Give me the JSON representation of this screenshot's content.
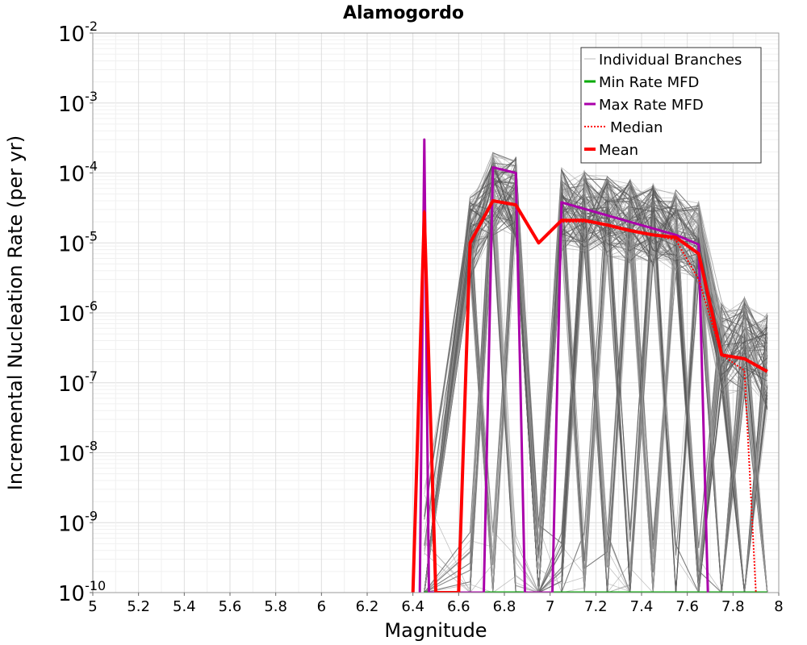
{
  "chart_data": {
    "type": "line",
    "title": "Alamogordo",
    "xlabel": "Magnitude",
    "ylabel": "Incremental Nucleation Rate (per yr)",
    "x_scale": "linear",
    "y_scale": "log",
    "xlim": [
      5,
      8
    ],
    "ylim": [
      1e-10,
      0.01
    ],
    "x_ticks": [
      "5",
      "5.2",
      "5.4",
      "5.6",
      "5.8",
      "6",
      "6.2",
      "6.4",
      "6.6",
      "6.8",
      "7",
      "7.2",
      "7.4",
      "7.6",
      "7.8",
      "8"
    ],
    "y_ticks": [
      {
        "base": "10",
        "exp": "-2",
        "value": 0.01
      },
      {
        "base": "10",
        "exp": "-3",
        "value": 0.001
      },
      {
        "base": "10",
        "exp": "-4",
        "value": 0.0001
      },
      {
        "base": "10",
        "exp": "-5",
        "value": 1e-05
      },
      {
        "base": "10",
        "exp": "-6",
        "value": 1e-06
      },
      {
        "base": "10",
        "exp": "-7",
        "value": 1e-07
      },
      {
        "base": "10",
        "exp": "-8",
        "value": 1e-08
      },
      {
        "base": "10",
        "exp": "-9",
        "value": 1e-09
      },
      {
        "base": "10",
        "exp": "-10",
        "value": 1e-10
      }
    ],
    "grid": true,
    "legend_position": "top-right",
    "series": [
      {
        "name": "Individual Branches",
        "color": "#555555",
        "style": "thin",
        "x": [
          6.45,
          6.65,
          6.75,
          6.85,
          6.95,
          7.05,
          7.15,
          7.25,
          7.35,
          7.45,
          7.55,
          7.65,
          7.75,
          7.85,
          7.95
        ],
        "values": [
          1e-10,
          1.2e-05,
          5e-05,
          4.5e-05,
          1e-10,
          3e-05,
          2.8e-05,
          2.3e-05,
          2e-05,
          1.8e-05,
          1.5e-05,
          1e-05,
          3e-07,
          3.5e-07,
          2e-07
        ]
      },
      {
        "name": "Min Rate MFD",
        "color": "#00aa00",
        "style": "solid",
        "x": [
          6.45,
          6.55,
          6.65,
          6.75,
          6.85,
          6.95,
          7.05,
          7.15,
          7.25,
          7.35,
          7.45,
          7.55,
          7.65,
          7.75,
          7.85,
          7.95
        ],
        "values": [
          1e-10,
          1e-10,
          1e-10,
          1e-10,
          1e-10,
          1e-10,
          1e-10,
          1e-10,
          1e-10,
          1e-10,
          1e-10,
          1e-10,
          1e-10,
          1e-10,
          1e-10,
          1e-10
        ]
      },
      {
        "name": "Max Rate MFD",
        "color": "#aa00aa",
        "style": "solid",
        "x": [
          6.43,
          6.45,
          6.47,
          6.71,
          6.75,
          6.85,
          6.89,
          7.01,
          7.05,
          7.55,
          7.65,
          7.69
        ],
        "values": [
          1e-10,
          0.0003,
          1e-10,
          1e-10,
          0.00012,
          0.0001,
          1e-10,
          1e-10,
          3.8e-05,
          1.3e-05,
          9.5e-06,
          1e-10
        ]
      },
      {
        "name": "Median",
        "color": "#ff0000",
        "style": "dotted",
        "x": [
          6.4,
          6.45,
          6.5,
          6.6,
          6.65,
          6.75,
          6.85,
          6.95,
          7.05,
          7.15,
          7.25,
          7.35,
          7.45,
          7.55,
          7.65,
          7.75,
          7.85,
          7.9
        ],
        "values": [
          1e-10,
          3e-05,
          1e-10,
          1e-10,
          1e-05,
          4e-05,
          3.5e-05,
          1e-05,
          2e-05,
          2e-05,
          1.8e-05,
          1.5e-05,
          1.3e-05,
          1.1e-05,
          3e-06,
          2.5e-07,
          1.5e-07,
          1e-10
        ]
      },
      {
        "name": "Mean",
        "color": "#ff0000",
        "style": "thick",
        "x": [
          6.4,
          6.45,
          6.5,
          6.6,
          6.65,
          6.75,
          6.85,
          6.95,
          7.05,
          7.15,
          7.25,
          7.35,
          7.45,
          7.55,
          7.65,
          7.75,
          7.85,
          7.95
        ],
        "values": [
          1e-10,
          2.7e-05,
          1e-10,
          1e-10,
          1e-05,
          4e-05,
          3.5e-05,
          1e-05,
          2.1e-05,
          2.1e-05,
          1.8e-05,
          1.5e-05,
          1.3e-05,
          1.2e-05,
          7e-06,
          2.5e-07,
          2.2e-07,
          1.45e-07
        ]
      }
    ]
  }
}
